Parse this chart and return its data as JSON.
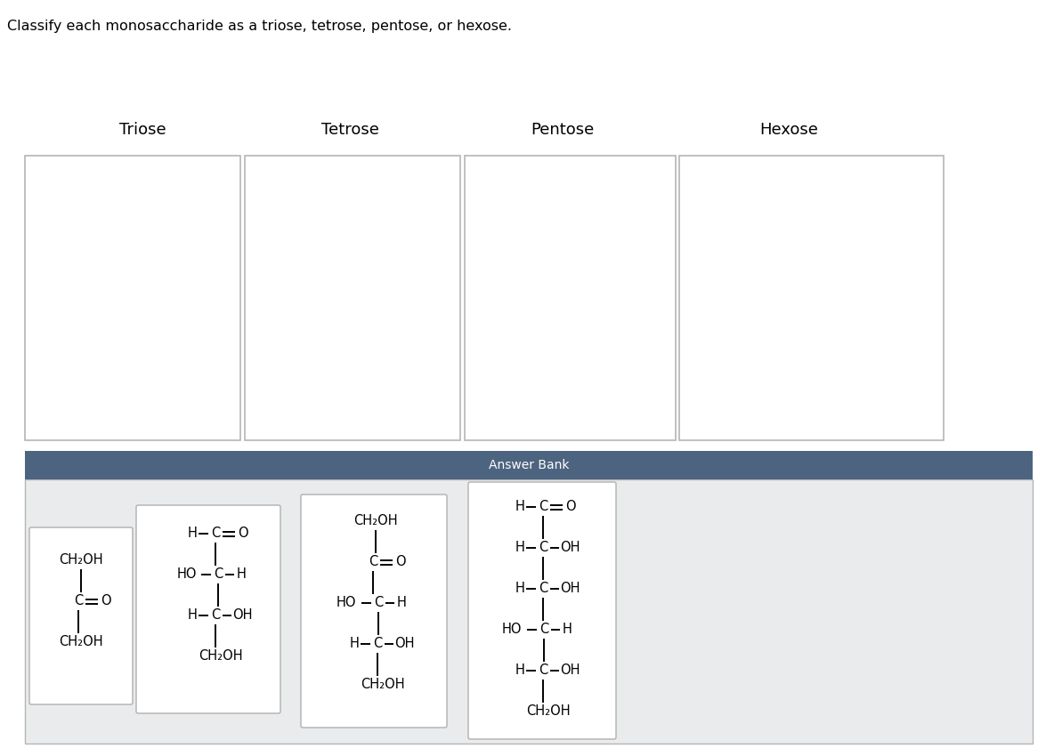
{
  "title_text": "Classify each monosaccharide as a triose, tetrose, pentose, or hexose.",
  "categories": [
    "Triose",
    "Tetrose",
    "Pentose",
    "Hexose"
  ],
  "bg_color": "#ffffff",
  "answer_bank_header_color": "#4d6480",
  "answer_bank_bg_color": "#eaebec",
  "box_border_color": "#b0b0b0",
  "answer_bank_label": "Answer Bank",
  "fig_w": 11.75,
  "fig_h": 8.41,
  "dpi": 100
}
